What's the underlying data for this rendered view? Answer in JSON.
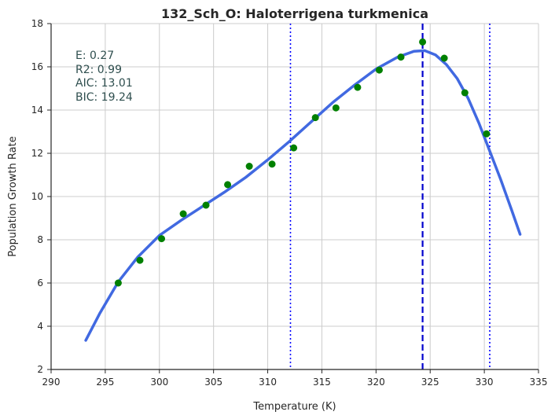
{
  "chart_data": {
    "type": "scatter",
    "title": "132_Sch_O: Haloterrigena turkmenica",
    "xlabel": "Temperature (K)",
    "ylabel": "Population Growth Rate",
    "xlim": [
      290,
      335
    ],
    "ylim": [
      2,
      18
    ],
    "xticks": [
      "290",
      "295",
      "300",
      "305",
      "310",
      "315",
      "320",
      "325",
      "330",
      "335"
    ],
    "yticks": [
      "2",
      "4",
      "6",
      "8",
      "10",
      "12",
      "14",
      "16",
      "18"
    ],
    "grid": true,
    "stats": [
      "E:  0.27",
      "R2:  0.99",
      "AIC: 13.01",
      "BIC: 19.24"
    ],
    "points": {
      "color": "#008000",
      "x": [
        296.2,
        298.2,
        300.2,
        302.2,
        304.3,
        306.3,
        308.3,
        310.4,
        312.4,
        314.4,
        316.3,
        318.3,
        320.3,
        322.3,
        324.3,
        326.3,
        328.2,
        330.2
      ],
      "y": [
        6.0,
        7.05,
        8.05,
        9.2,
        9.6,
        10.55,
        11.4,
        11.5,
        12.25,
        13.65,
        14.1,
        15.05,
        15.85,
        16.45,
        17.15,
        16.4,
        14.8,
        12.9
      ]
    },
    "fit_curve": {
      "color": "#4169E1",
      "x": [
        293.2,
        294.5,
        296.2,
        298.0,
        300.0,
        302.0,
        304.0,
        306.0,
        308.0,
        310.0,
        312.0,
        314.0,
        316.0,
        318.0,
        320.0,
        322.0,
        323.5,
        324.5,
        325.5,
        326.5,
        327.5,
        328.5,
        329.5,
        330.5,
        331.5,
        332.5,
        333.3
      ],
      "y": [
        3.35,
        4.6,
        6.05,
        7.2,
        8.2,
        8.9,
        9.55,
        10.2,
        10.9,
        11.7,
        12.55,
        13.45,
        14.35,
        15.15,
        15.9,
        16.45,
        16.72,
        16.75,
        16.55,
        16.1,
        15.45,
        14.55,
        13.4,
        12.1,
        10.8,
        9.4,
        8.25
      ]
    },
    "vlines": [
      {
        "x": 324.3,
        "style": "dashed",
        "color": "#0000CD"
      },
      {
        "x": 312.1,
        "style": "dotted",
        "color": "#0000FF"
      },
      {
        "x": 330.5,
        "style": "dotted",
        "color": "#0000FF"
      }
    ]
  }
}
